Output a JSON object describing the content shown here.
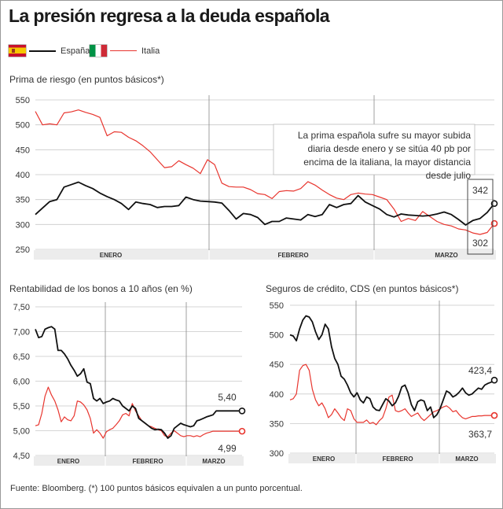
{
  "title": "La presión regresa a la deuda española",
  "legend": [
    {
      "name": "España",
      "color": "#111111",
      "flag": "flag-spain-icon"
    },
    {
      "name": "Italia",
      "color": "#e8352e",
      "flag": "flag-italy-icon"
    }
  ],
  "source": "Fuente: Bloomberg. (*) 100 puntos básicos equivalen a un punto porcentual.",
  "chart_data": [
    {
      "id": "prima",
      "type": "line",
      "title": "Prima de riesgo (en puntos básicos*)",
      "ylim": [
        250,
        550
      ],
      "yticks": [
        250,
        300,
        350,
        400,
        450,
        500,
        550
      ],
      "month_labels": [
        "ENERO",
        "FEBRERO",
        "MARZO"
      ],
      "x": [
        1,
        2,
        3,
        4,
        5,
        6,
        7,
        8,
        9,
        10,
        11,
        12,
        13,
        14,
        15,
        16,
        17,
        18,
        19,
        20,
        21,
        22,
        23,
        24,
        25,
        26,
        27,
        28,
        29,
        30,
        31,
        32,
        33,
        34,
        35,
        36,
        37,
        38,
        39,
        40,
        41,
        42,
        43,
        44,
        45,
        46,
        47,
        48,
        49,
        50,
        51,
        52,
        53,
        54,
        55,
        56,
        57,
        58,
        59,
        60,
        61,
        62,
        63,
        64,
        65
      ],
      "series": [
        {
          "name": "España",
          "values": [
            320,
            333,
            346,
            350,
            375,
            380,
            385,
            378,
            372,
            363,
            356,
            350,
            342,
            330,
            345,
            342,
            340,
            334,
            336,
            336,
            338,
            355,
            350,
            347,
            346,
            345,
            343,
            328,
            311,
            322,
            320,
            314,
            300,
            306,
            306,
            313,
            311,
            309,
            320,
            316,
            320,
            340,
            334,
            340,
            342,
            358,
            345,
            338,
            331,
            320,
            315,
            321,
            319,
            318,
            317,
            318,
            321,
            325,
            320,
            310,
            299,
            308,
            312,
            324,
            342
          ]
        },
        {
          "name": "Italia",
          "values": [
            527,
            500,
            502,
            500,
            524,
            526,
            530,
            525,
            521,
            515,
            478,
            486,
            485,
            475,
            468,
            458,
            446,
            430,
            414,
            416,
            428,
            420,
            413,
            402,
            430,
            420,
            383,
            376,
            375,
            375,
            370,
            362,
            360,
            352,
            366,
            368,
            367,
            372,
            386,
            379,
            369,
            360,
            353,
            350,
            360,
            363,
            361,
            360,
            355,
            350,
            331,
            306,
            312,
            308,
            326,
            316,
            306,
            300,
            297,
            291,
            289,
            283,
            280,
            284,
            302
          ]
        }
      ],
      "end_labels": [
        "342",
        "302"
      ],
      "annotation": "La prima española sufre su mayor subida diaria desde enero y se sitúa 40 pb por encima de la italiana, la mayor distancia desde julio"
    },
    {
      "id": "bonos",
      "type": "line",
      "title": "Rentabilidad de los bonos a 10 años (en %)",
      "ylim": [
        4.5,
        7.5
      ],
      "yticks": [
        4.5,
        5.0,
        5.5,
        6.0,
        6.5,
        7.0,
        7.5
      ],
      "ytick_labels": [
        "4,50",
        "5,00",
        "5,50",
        "6,00",
        "6,50",
        "7,00",
        "7,50"
      ],
      "month_labels": [
        "ENERO",
        "FEBRERO",
        "MARZO"
      ],
      "x": [
        1,
        2,
        3,
        4,
        5,
        6,
        7,
        8,
        9,
        10,
        11,
        12,
        13,
        14,
        15,
        16,
        17,
        18,
        19,
        20,
        21,
        22,
        23,
        24,
        25,
        26,
        27,
        28,
        29,
        30,
        31,
        32,
        33,
        34,
        35,
        36,
        37,
        38,
        39,
        40,
        41,
        42,
        43,
        44,
        45,
        46,
        47,
        48,
        49,
        50,
        51,
        52,
        53,
        54,
        55,
        56,
        57,
        58,
        59,
        60,
        61,
        62,
        63,
        64,
        65
      ],
      "series": [
        {
          "name": "España",
          "values": [
            7.05,
            6.88,
            6.9,
            7.05,
            7.08,
            7.1,
            7.05,
            6.62,
            6.62,
            6.55,
            6.45,
            6.32,
            6.22,
            6.1,
            6.15,
            6.25,
            5.98,
            5.95,
            5.65,
            5.6,
            5.65,
            5.55,
            5.58,
            5.6,
            5.65,
            5.62,
            5.6,
            5.5,
            5.45,
            5.4,
            5.5,
            5.45,
            5.25,
            5.2,
            5.15,
            5.1,
            5.05,
            5.02,
            5.03,
            5.02,
            4.95,
            4.85,
            4.9,
            5.05,
            5.1,
            5.15,
            5.12,
            5.1,
            5.08,
            5.1,
            5.2,
            5.22,
            5.25,
            5.28,
            5.3,
            5.32,
            5.4,
            5.4,
            5.4,
            5.4,
            5.4,
            5.4,
            5.4,
            5.4,
            5.4
          ]
        },
        {
          "name": "Italia",
          "values": [
            5.1,
            5.12,
            5.35,
            5.7,
            5.88,
            5.72,
            5.6,
            5.42,
            5.18,
            5.28,
            5.22,
            5.2,
            5.3,
            5.6,
            5.58,
            5.52,
            5.42,
            5.25,
            4.95,
            5.02,
            4.95,
            4.85,
            4.98,
            5.02,
            5.05,
            5.12,
            5.2,
            5.32,
            5.35,
            5.3,
            5.55,
            5.4,
            5.3,
            5.2,
            5.15,
            5.1,
            5.08,
            5.05,
            5.02,
            5.0,
            4.9,
            4.88,
            4.95,
            5.0,
            4.95,
            4.9,
            4.88,
            4.9,
            4.9,
            4.88,
            4.9,
            4.88,
            4.92,
            4.95,
            4.97,
            4.99,
            4.99,
            4.99,
            4.99,
            4.99,
            4.99,
            4.99,
            4.99,
            4.99,
            4.99
          ]
        }
      ],
      "end_labels": [
        "5,40",
        "4,99"
      ]
    },
    {
      "id": "cds",
      "type": "line",
      "title": "Seguros de crédito, CDS (en puntos básicos*)",
      "ylim": [
        300,
        550
      ],
      "yticks": [
        300,
        350,
        400,
        450,
        500,
        550
      ],
      "month_labels": [
        "ENERO",
        "FEBRERO",
        "MARZO"
      ],
      "x": [
        1,
        2,
        3,
        4,
        5,
        6,
        7,
        8,
        9,
        10,
        11,
        12,
        13,
        14,
        15,
        16,
        17,
        18,
        19,
        20,
        21,
        22,
        23,
        24,
        25,
        26,
        27,
        28,
        29,
        30,
        31,
        32,
        33,
        34,
        35,
        36,
        37,
        38,
        39,
        40,
        41,
        42,
        43,
        44,
        45,
        46,
        47,
        48,
        49,
        50,
        51,
        52,
        53,
        54,
        55,
        56,
        57,
        58,
        59,
        60,
        61,
        62,
        63,
        64,
        65
      ],
      "series": [
        {
          "name": "España",
          "values": [
            500,
            498,
            490,
            510,
            525,
            532,
            530,
            522,
            505,
            492,
            500,
            518,
            510,
            480,
            460,
            450,
            430,
            425,
            415,
            402,
            395,
            402,
            390,
            385,
            395,
            392,
            378,
            373,
            372,
            382,
            392,
            388,
            380,
            385,
            396,
            412,
            415,
            402,
            382,
            372,
            387,
            390,
            388,
            372,
            378,
            360,
            365,
            375,
            390,
            405,
            402,
            395,
            398,
            403,
            410,
            402,
            398,
            400,
            405,
            410,
            408,
            415,
            418,
            420,
            423.4
          ]
        },
        {
          "name": "Italia",
          "values": [
            390,
            392,
            400,
            440,
            448,
            450,
            440,
            408,
            390,
            380,
            385,
            375,
            360,
            365,
            375,
            368,
            360,
            355,
            375,
            372,
            358,
            352,
            352,
            352,
            356,
            350,
            352,
            348,
            355,
            360,
            375,
            395,
            398,
            372,
            370,
            372,
            375,
            368,
            362,
            365,
            368,
            360,
            355,
            360,
            365,
            370,
            372,
            375,
            378,
            380,
            376,
            370,
            372,
            365,
            360,
            358,
            360,
            362,
            362,
            363,
            363,
            363.7,
            363.7,
            363.7,
            363.7
          ]
        }
      ],
      "end_labels": [
        "423,4",
        "363,7"
      ]
    }
  ]
}
